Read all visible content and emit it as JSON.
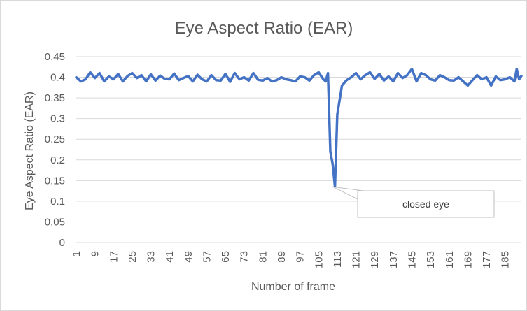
{
  "chart_data": {
    "type": "line",
    "title": "Eye Aspect Ratio (EAR)",
    "xlabel": "Number of frame",
    "ylabel": "Eye Aspect Ratio (EAR)",
    "ylim": [
      0,
      0.45
    ],
    "yticks": [
      "0",
      "0.05",
      "0.1",
      "0.15",
      "0.2",
      "0.25",
      "0.3",
      "0.35",
      "0.4",
      "0.45"
    ],
    "xlim": [
      1,
      192
    ],
    "xticks": [
      "1",
      "9",
      "17",
      "25",
      "33",
      "41",
      "49",
      "57",
      "65",
      "73",
      "81",
      "89",
      "97",
      "105",
      "113",
      "121",
      "129",
      "137",
      "145",
      "153",
      "161",
      "169",
      "177",
      "185"
    ],
    "grid": "horizontal",
    "legend": "none",
    "annotation": {
      "text": "closed eye",
      "x": 111,
      "y": 0.135
    },
    "series": [
      {
        "color": "#4472c4",
        "x": [
          1,
          3,
          5,
          7,
          9,
          11,
          13,
          15,
          17,
          19,
          21,
          23,
          25,
          27,
          29,
          31,
          33,
          35,
          37,
          39,
          41,
          43,
          45,
          47,
          49,
          51,
          53,
          55,
          57,
          59,
          61,
          63,
          65,
          67,
          69,
          71,
          73,
          75,
          77,
          79,
          81,
          83,
          85,
          87,
          89,
          91,
          93,
          95,
          97,
          99,
          101,
          103,
          105,
          107,
          108,
          109,
          110,
          111,
          112,
          113,
          115,
          117,
          119,
          121,
          123,
          125,
          127,
          129,
          131,
          133,
          135,
          137,
          139,
          141,
          143,
          145,
          147,
          149,
          151,
          153,
          155,
          157,
          159,
          161,
          163,
          165,
          167,
          169,
          171,
          173,
          175,
          177,
          179,
          181,
          183,
          185,
          187,
          189,
          190,
          191,
          192
        ],
        "values": [
          0.4,
          0.39,
          0.395,
          0.412,
          0.398,
          0.41,
          0.39,
          0.402,
          0.395,
          0.408,
          0.39,
          0.403,
          0.41,
          0.398,
          0.405,
          0.39,
          0.407,
          0.392,
          0.404,
          0.396,
          0.395,
          0.409,
          0.393,
          0.398,
          0.403,
          0.39,
          0.406,
          0.395,
          0.39,
          0.405,
          0.393,
          0.392,
          0.408,
          0.389,
          0.41,
          0.395,
          0.4,
          0.392,
          0.41,
          0.394,
          0.392,
          0.398,
          0.39,
          0.393,
          0.4,
          0.395,
          0.393,
          0.39,
          0.402,
          0.4,
          0.392,
          0.405,
          0.412,
          0.395,
          0.39,
          0.41,
          0.22,
          0.19,
          0.135,
          0.31,
          0.38,
          0.393,
          0.4,
          0.41,
          0.395,
          0.405,
          0.412,
          0.396,
          0.408,
          0.392,
          0.402,
          0.39,
          0.41,
          0.398,
          0.405,
          0.42,
          0.39,
          0.41,
          0.405,
          0.395,
          0.392,
          0.405,
          0.4,
          0.393,
          0.392,
          0.4,
          0.39,
          0.38,
          0.393,
          0.405,
          0.395,
          0.4,
          0.38,
          0.402,
          0.393,
          0.395,
          0.4,
          0.39,
          0.42,
          0.395,
          0.403
        ]
      }
    ]
  }
}
